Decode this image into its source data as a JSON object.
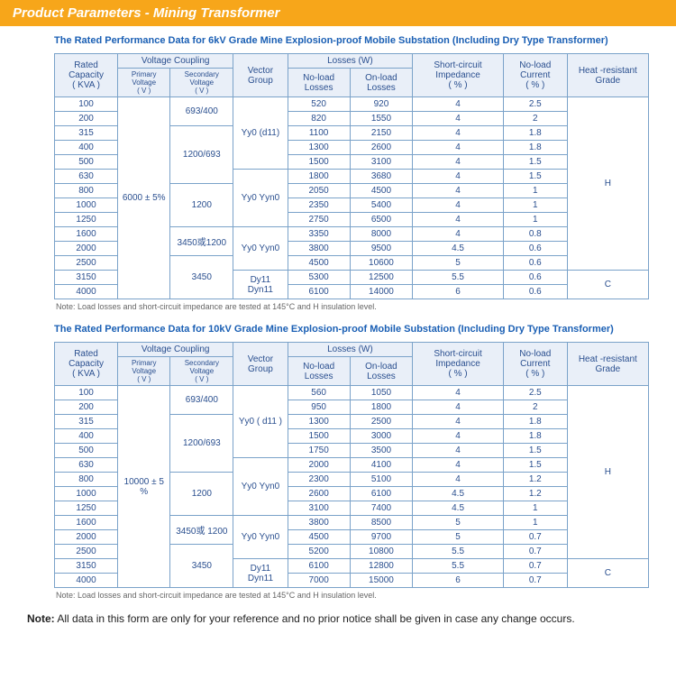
{
  "header": "Product Parameters - Mining Transformer",
  "tables": [
    {
      "title": "The Rated Performance Data for 6kV Grade Mine Explosion-proof Mobile Substation (Including Dry Type Transformer)",
      "headers": {
        "capacity": "Rated Capacity",
        "capacity_unit": "( KVA )",
        "coupling": "Voltage Coupling",
        "primary": "Primary Voltage",
        "primary_unit": "( V )",
        "secondary": "Secondary Voltage",
        "secondary_unit": "( V )",
        "vector": "Vector Group",
        "losses": "Losses  (W)",
        "noload": "No-load Losses",
        "onload": "On-load Losses",
        "sc": "Short-circuit Impedance",
        "sc_unit": "( % )",
        "nlc": "No-load Current",
        "nlc_unit": "( % )",
        "heat": "Heat -resistant Grade"
      },
      "primary_voltage": "6000 ± 5%",
      "blocks": [
        {
          "secondary": "693/400",
          "vector_group": "Yy0 (d11)",
          "vector_rowspan": 5,
          "heat_label": "H",
          "heat_rowspan": 12,
          "rows": [
            {
              "cap": "100",
              "nl": "520",
              "ol": "920",
              "sc": "4",
              "cur": "2.5"
            },
            {
              "cap": "200",
              "nl": "820",
              "ol": "1550",
              "sc": "4",
              "cur": "2"
            }
          ]
        },
        {
          "secondary": "1200/693",
          "rows": [
            {
              "cap": "315",
              "nl": "1100",
              "ol": "2150",
              "sc": "4",
              "cur": "1.8"
            },
            {
              "cap": "400",
              "nl": "1300",
              "ol": "2600",
              "sc": "4",
              "cur": "1.8"
            },
            {
              "cap": "500",
              "nl": "1500",
              "ol": "3100",
              "sc": "4",
              "cur": "1.5"
            }
          ]
        },
        {
          "secondary_continue": true,
          "vector_group": "Yy0   Yyn0",
          "vector_rowspan": 4,
          "rows": [
            {
              "cap": "630",
              "nl": "1800",
              "ol": "3680",
              "sc": "4",
              "cur": "1.5"
            }
          ]
        },
        {
          "secondary": "1200",
          "rows": [
            {
              "cap": "800",
              "nl": "2050",
              "ol": "4500",
              "sc": "4",
              "cur": "1"
            },
            {
              "cap": "1000",
              "nl": "2350",
              "ol": "5400",
              "sc": "4",
              "cur": "1"
            },
            {
              "cap": "1250",
              "nl": "2750",
              "ol": "6500",
              "sc": "4",
              "cur": "1"
            }
          ]
        },
        {
          "secondary": "3450或1200",
          "vector_group": "Yy0   Yyn0",
          "vector_rowspan": 3,
          "rows": [
            {
              "cap": "1600",
              "nl": "3350",
              "ol": "8000",
              "sc": "4",
              "cur": "0.8"
            },
            {
              "cap": "2000",
              "nl": "3800",
              "ol": "9500",
              "sc": "4.5",
              "cur": "0.6"
            }
          ]
        },
        {
          "secondary": "3450",
          "rows": [
            {
              "cap": "2500",
              "nl": "4500",
              "ol": "10600",
              "sc": "5",
              "cur": "0.6"
            }
          ]
        },
        {
          "secondary_continue": true,
          "vector_group": "Dy11 Dyn11",
          "vector_rowspan": 2,
          "heat_label": "C",
          "heat_rowspan": 2,
          "rows": [
            {
              "cap": "3150",
              "nl": "5300",
              "ol": "12500",
              "sc": "5.5",
              "cur": "0.6"
            },
            {
              "cap": "4000",
              "nl": "6100",
              "ol": "14000",
              "sc": "6",
              "cur": "0.6"
            }
          ]
        }
      ],
      "footnote": "Note: Load losses and short-circuit impedance are tested at 145°C and H insulation level."
    },
    {
      "title": "The Rated Performance Data for 10kV Grade Mine Explosion-proof Mobile Substation (Including Dry Type Transformer)",
      "headers": {
        "capacity": "Rated Capacity",
        "capacity_unit": "( KVA )",
        "coupling": "Voltage Coupling",
        "primary": "Primary Voltage",
        "primary_unit": "( V )",
        "secondary": "Secondary Voltage",
        "secondary_unit": "( V )",
        "vector": "Vector Group",
        "losses": "Losses  (W)",
        "noload": "No-load Losses",
        "onload": "On-load Losses",
        "sc": "Short-circuit Impedance",
        "sc_unit": "( % )",
        "nlc": "No-load Current",
        "nlc_unit": "( % )",
        "heat": "Heat -resistant Grade"
      },
      "primary_voltage": "10000 ± 5 %",
      "blocks": [
        {
          "secondary": "693/400",
          "vector_group": "Yy0 ( d11 )",
          "vector_rowspan": 5,
          "heat_label": "H",
          "heat_rowspan": 12,
          "rows": [
            {
              "cap": "100",
              "nl": "560",
              "ol": "1050",
              "sc": "4",
              "cur": "2.5"
            },
            {
              "cap": "200",
              "nl": "950",
              "ol": "1800",
              "sc": "4",
              "cur": "2"
            }
          ]
        },
        {
          "secondary": "1200/693",
          "rows": [
            {
              "cap": "315",
              "nl": "1300",
              "ol": "2500",
              "sc": "4",
              "cur": "1.8"
            },
            {
              "cap": "400",
              "nl": "1500",
              "ol": "3000",
              "sc": "4",
              "cur": "1.8"
            },
            {
              "cap": "500",
              "nl": "1750",
              "ol": "3500",
              "sc": "4",
              "cur": "1.5"
            }
          ]
        },
        {
          "secondary_continue": true,
          "vector_group": "Yy0 Yyn0",
          "vector_rowspan": 4,
          "rows": [
            {
              "cap": "630",
              "nl": "2000",
              "ol": "4100",
              "sc": "4",
              "cur": "1.5"
            }
          ]
        },
        {
          "secondary": "1200",
          "rows": [
            {
              "cap": "800",
              "nl": "2300",
              "ol": "5100",
              "sc": "4",
              "cur": "1.2"
            },
            {
              "cap": "1000",
              "nl": "2600",
              "ol": "6100",
              "sc": "4.5",
              "cur": "1.2"
            },
            {
              "cap": "1250",
              "nl": "3100",
              "ol": "7400",
              "sc": "4.5",
              "cur": "1"
            }
          ]
        },
        {
          "secondary": "3450或 1200",
          "vector_group": "Yy0 Yyn0",
          "vector_rowspan": 3,
          "rows": [
            {
              "cap": "1600",
              "nl": "3800",
              "ol": "8500",
              "sc": "5",
              "cur": "1"
            },
            {
              "cap": "2000",
              "nl": "4500",
              "ol": "9700",
              "sc": "5",
              "cur": "0.7"
            }
          ]
        },
        {
          "secondary": "3450",
          "rows": [
            {
              "cap": "2500",
              "nl": "5200",
              "ol": "10800",
              "sc": "5.5",
              "cur": "0.7"
            }
          ]
        },
        {
          "secondary_continue": true,
          "vector_group": "Dy11 Dyn11",
          "vector_rowspan": 2,
          "heat_label": "C",
          "heat_rowspan": 2,
          "rows": [
            {
              "cap": "3150",
              "nl": "6100",
              "ol": "12800",
              "sc": "5.5",
              "cur": "0.7"
            },
            {
              "cap": "4000",
              "nl": "7000",
              "ol": "15000",
              "sc": "6",
              "cur": "0.7"
            }
          ]
        }
      ],
      "footnote": "Note: Load losses and short-circuit impedance are tested at 145°C and H insulation level."
    }
  ],
  "final_note_label": "Note:",
  "final_note_text": " All data in this form are only for your reference and no prior notice shall be given in case any change occurs."
}
